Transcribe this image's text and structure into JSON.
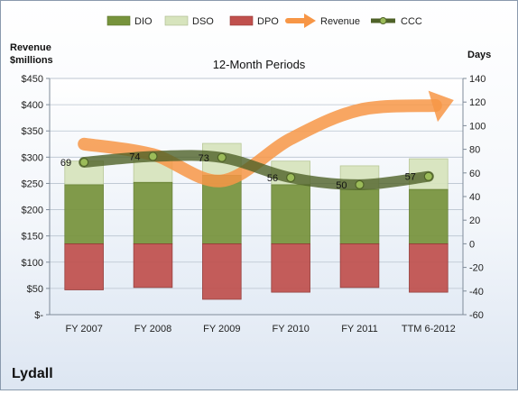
{
  "chart_data": {
    "type": "bar",
    "company": "Lydall",
    "title": "12-Month Periods",
    "left_axis_label_line1": "Revenue",
    "left_axis_label_line2": "$millions",
    "right_axis_label": "Days",
    "categories": [
      "FY 2007",
      "FY 2008",
      "FY 2009",
      "FY 2010",
      "FY 2011",
      "TTM 6-2012"
    ],
    "left_axis": {
      "min": 0,
      "max": 450,
      "step": 50,
      "tick_labels": [
        "$-",
        "$50",
        "$100",
        "$150",
        "$200",
        "$250",
        "$300",
        "$350",
        "$400",
        "$450"
      ]
    },
    "right_axis": {
      "min": -60,
      "max": 140,
      "step": 20,
      "tick_labels": [
        "-60",
        "-40",
        "-20",
        "0",
        "20",
        "40",
        "60",
        "80",
        "100",
        "120",
        "140"
      ]
    },
    "legend": [
      "DIO",
      "DSO",
      "DPO",
      "Revenue",
      "CCC"
    ],
    "series": [
      {
        "name": "DIO",
        "axis": "right",
        "color": "#77933c",
        "values": [
          50,
          52,
          58,
          50,
          46,
          46
        ]
      },
      {
        "name": "DSO",
        "axis": "right",
        "color": "#d7e4bd",
        "values": [
          20,
          22,
          27,
          20,
          20,
          26
        ]
      },
      {
        "name": "DPO",
        "axis": "right",
        "color": "#c0504d",
        "values": [
          -39,
          -37,
          -47,
          -41,
          -37,
          -41
        ]
      },
      {
        "name": "Revenue",
        "axis": "left",
        "color": "#f79646",
        "values": [
          325,
          305,
          255,
          335,
          390,
          395
        ]
      },
      {
        "name": "CCC",
        "axis": "right",
        "color": "#4f6228",
        "values": [
          69,
          74,
          73,
          56,
          50,
          57
        ],
        "labels": [
          "69",
          "74",
          "73",
          "56",
          "50",
          "57"
        ]
      }
    ],
    "grid": true,
    "legend_position": "top"
  }
}
